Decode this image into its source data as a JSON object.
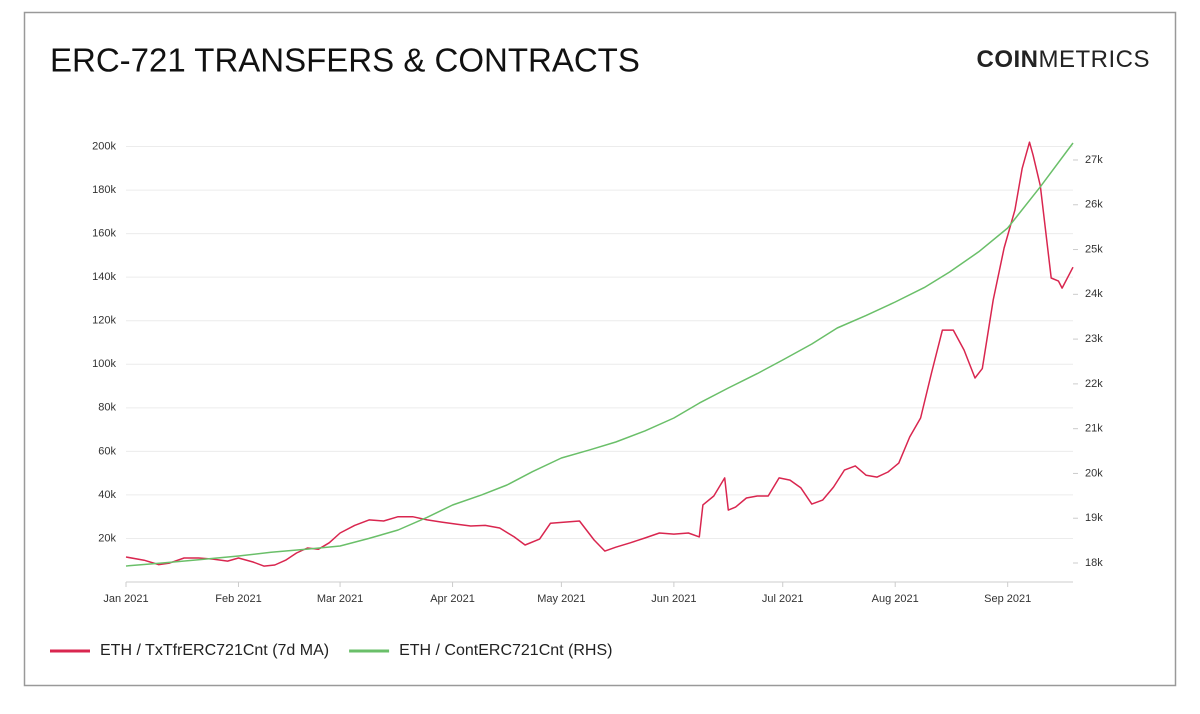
{
  "chart_data": {
    "type": "line",
    "title": "ERC-721 TRANSFERS & CONTRACTS",
    "logo": {
      "bold": "COIN",
      "light": "METRICS"
    },
    "xlim": [
      0,
      261
    ],
    "xticks": [
      {
        "value": 0,
        "label": "Jan 2021"
      },
      {
        "value": 31,
        "label": "Feb 2021"
      },
      {
        "value": 59,
        "label": "Mar 2021"
      },
      {
        "value": 90,
        "label": "Apr 2021"
      },
      {
        "value": 120,
        "label": "May 2021"
      },
      {
        "value": 151,
        "label": "Jun 2021"
      },
      {
        "value": 181,
        "label": "Jul 2021"
      },
      {
        "value": 212,
        "label": "Aug 2021"
      },
      {
        "value": 243,
        "label": "Sep 2021"
      }
    ],
    "ylim": [
      0,
      203000
    ],
    "yticks": [
      {
        "value": 20000,
        "label": "20k"
      },
      {
        "value": 40000,
        "label": "40k"
      },
      {
        "value": 60000,
        "label": "60k"
      },
      {
        "value": 80000,
        "label": "80k"
      },
      {
        "value": 100000,
        "label": "100k"
      },
      {
        "value": 120000,
        "label": "120k"
      },
      {
        "value": 140000,
        "label": "140k"
      },
      {
        "value": 160000,
        "label": "160k"
      },
      {
        "value": 180000,
        "label": "180k"
      },
      {
        "value": 200000,
        "label": "200k"
      }
    ],
    "y2lim": [
      17576,
      27446
    ],
    "y2ticks": [
      {
        "value": 18000,
        "label": "18k"
      },
      {
        "value": 19000,
        "label": "19k"
      },
      {
        "value": 20000,
        "label": "20k"
      },
      {
        "value": 21000,
        "label": "21k"
      },
      {
        "value": 22000,
        "label": "22k"
      },
      {
        "value": 23000,
        "label": "23k"
      },
      {
        "value": 24000,
        "label": "24k"
      },
      {
        "value": 25000,
        "label": "25k"
      },
      {
        "value": 26000,
        "label": "26k"
      },
      {
        "value": 27000,
        "label": "27k"
      }
    ],
    "grid": true,
    "legend": "bottom-left",
    "series": [
      {
        "name": "ETH / TxTfrERC721Cnt (7d MA)",
        "color": "#d9264f",
        "x": [
          0,
          5,
          9,
          12,
          16,
          20,
          24,
          28,
          31,
          35,
          38,
          41,
          44,
          47,
          50,
          53,
          56,
          59,
          63,
          67,
          71,
          75,
          79,
          83,
          87,
          91,
          95,
          99,
          103,
          107,
          110,
          114,
          117,
          121,
          125,
          129,
          132,
          135,
          139,
          143,
          147,
          151,
          155,
          158,
          159,
          162,
          165,
          166,
          168,
          171,
          174,
          177,
          180,
          183,
          186,
          189,
          192,
          195,
          198,
          201,
          204,
          207,
          210,
          213,
          216,
          219,
          222,
          225,
          228,
          231,
          234,
          236,
          239,
          242,
          245,
          247,
          249,
          250,
          252,
          255,
          257,
          258,
          261
        ],
        "values": [
          11500,
          10000,
          8000,
          8700,
          11000,
          11000,
          10500,
          9600,
          11000,
          9200,
          7300,
          7800,
          10000,
          13300,
          15600,
          15000,
          18000,
          22500,
          26000,
          28500,
          28000,
          30000,
          30000,
          28500,
          27500,
          26600,
          25700,
          26000,
          24800,
          20700,
          17000,
          19700,
          27000,
          27500,
          28000,
          19300,
          14200,
          16000,
          18000,
          20200,
          22500,
          22000,
          22500,
          20700,
          35400,
          39500,
          47800,
          33000,
          34400,
          38600,
          39500,
          39500,
          47800,
          46800,
          43200,
          35800,
          37600,
          43600,
          51400,
          53300,
          49000,
          48200,
          50500,
          54600,
          66600,
          75300,
          96000,
          115700,
          115700,
          106500,
          93700,
          98000,
          129500,
          153400,
          170800,
          190000,
          202000,
          196000,
          182000,
          139600,
          138200,
          135000,
          144600
        ]
      },
      {
        "name": "ETH / ContERC721Cnt (RHS)",
        "color": "#6abf69",
        "axis": "y2",
        "x": [
          0,
          10,
          20,
          31,
          40,
          50,
          59,
          67,
          75,
          83,
          90,
          98,
          105,
          112,
          120,
          128,
          135,
          143,
          151,
          158,
          166,
          174,
          181,
          189,
          196,
          204,
          212,
          220,
          227,
          235,
          243,
          252,
          261
        ],
        "values": [
          17933,
          18000,
          18075,
          18156,
          18240,
          18310,
          18379,
          18550,
          18737,
          19020,
          19296,
          19520,
          19742,
          20040,
          20345,
          20530,
          20702,
          20950,
          21238,
          21570,
          21908,
          22230,
          22533,
          22890,
          23248,
          23530,
          23829,
          24150,
          24498,
          24950,
          25481,
          26400,
          27379
        ]
      }
    ]
  }
}
